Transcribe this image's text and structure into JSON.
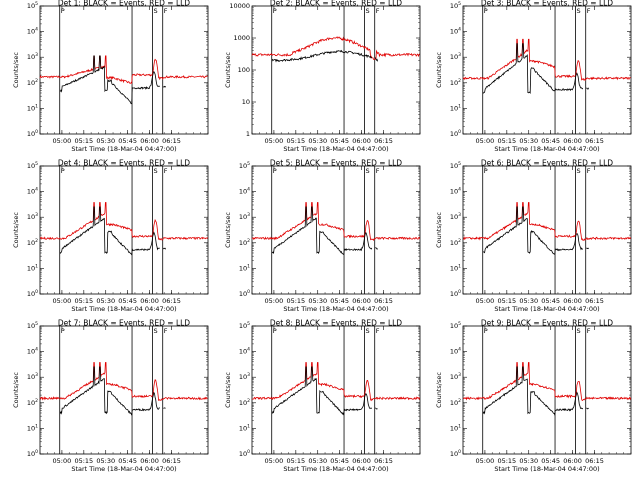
{
  "chart_data": {
    "type": "line",
    "panels": [
      {
        "title": "Det 1: BLACK = Events, RED = LLD",
        "ymax_exp": 5,
        "events_base": 70,
        "lld_base": 170,
        "lld_peak": 450,
        "events_peak": 400,
        "quiet": false
      },
      {
        "title": "Det 2: BLACK = Events, RED = LLD",
        "ymax_exp": 4,
        "events_base": 200,
        "lld_base": 300,
        "lld_peak": 1000,
        "events_peak": 380,
        "quiet": true
      },
      {
        "title": "Det 3: BLACK = Events, RED = LLD",
        "ymax_exp": 5,
        "events_base": 60,
        "lld_base": 150,
        "lld_peak": 2000,
        "events_peak": 1200,
        "quiet": false
      },
      {
        "title": "Det 4: BLACK = Events, RED = LLD",
        "ymax_exp": 5,
        "events_base": 60,
        "lld_base": 150,
        "lld_peak": 1500,
        "events_peak": 900,
        "quiet": false
      },
      {
        "title": "Det 5: BLACK = Events, RED = LLD",
        "ymax_exp": 5,
        "events_base": 60,
        "lld_base": 150,
        "lld_peak": 1500,
        "events_peak": 900,
        "quiet": false
      },
      {
        "title": "Det 6: BLACK = Events, RED = LLD",
        "ymax_exp": 5,
        "events_base": 60,
        "lld_base": 150,
        "lld_peak": 1500,
        "events_peak": 900,
        "quiet": false
      },
      {
        "title": "Det 7: BLACK = Events, RED = LLD",
        "ymax_exp": 5,
        "events_base": 60,
        "lld_base": 150,
        "lld_peak": 1500,
        "events_peak": 900,
        "quiet": false
      },
      {
        "title": "Det 8: BLACK = Events, RED = LLD",
        "ymax_exp": 5,
        "events_base": 60,
        "lld_base": 150,
        "lld_peak": 1500,
        "events_peak": 900,
        "quiet": false
      },
      {
        "title": "Det 9: BLACK = Events, RED = LLD",
        "ymax_exp": 5,
        "events_base": 60,
        "lld_base": 150,
        "lld_peak": 1500,
        "events_peak": 900,
        "quiet": false
      }
    ],
    "xlabel": "Start Time (18-Mar-04 04:47:00)",
    "ylabel": "Counts/sec",
    "xlim_minutes": [
      -15,
      100
    ],
    "x_tick_labels": [
      "05:00",
      "05:15",
      "05:30",
      "05:45",
      "06:00",
      "06:15"
    ],
    "x_tick_minutes": [
      0,
      15,
      30,
      45,
      60,
      75
    ],
    "vertical_markers_minutes": [
      -1.5,
      48,
      62,
      69
    ],
    "marker_labels": [
      "P",
      "S",
      "F"
    ],
    "marker_label_minutes": [
      -1.5,
      62,
      69
    ],
    "series": [
      {
        "name": "Events",
        "color": "#000000"
      },
      {
        "name": "LLD",
        "color": "#e00000"
      }
    ],
    "yscale": "log"
  }
}
